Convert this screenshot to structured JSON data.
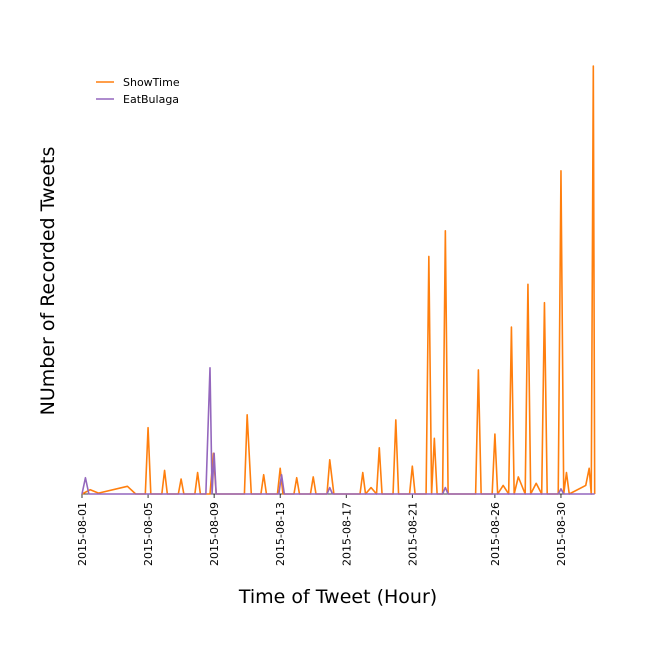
{
  "chart_data": {
    "type": "line",
    "title": "",
    "xlabel": "Time of Tweet (Hour)",
    "ylabel": "NUmber of Recorded Tweets",
    "xlim": [
      "2015-08-01",
      "2015-08-31"
    ],
    "ylim": [
      0,
      1000
    ],
    "x_ticks": [
      "2015-08-01",
      "2015-08-05",
      "2015-08-09",
      "2015-08-13",
      "2015-08-17",
      "2015-08-21",
      "2015-08-26",
      "2015-08-30"
    ],
    "y_ticks_visible": false,
    "grid": false,
    "legend": "top-left",
    "series": [
      {
        "name": "ShowTime",
        "color": "#ff7f0e",
        "points": [
          [
            "2015-08-01 00:00",
            0
          ],
          [
            "2015-08-01 12:00",
            10
          ],
          [
            "2015-08-02 00:00",
            2
          ],
          [
            "2015-08-03 18:00",
            18
          ],
          [
            "2015-08-04 06:00",
            0
          ],
          [
            "2015-08-04 20:00",
            0
          ],
          [
            "2015-08-05 00:00",
            155
          ],
          [
            "2015-08-05 04:00",
            0
          ],
          [
            "2015-08-05 20:00",
            0
          ],
          [
            "2015-08-06 00:00",
            55
          ],
          [
            "2015-08-06 04:00",
            0
          ],
          [
            "2015-08-06 20:00",
            0
          ],
          [
            "2015-08-07 00:00",
            35
          ],
          [
            "2015-08-07 04:00",
            0
          ],
          [
            "2015-08-07 20:00",
            0
          ],
          [
            "2015-08-08 00:00",
            50
          ],
          [
            "2015-08-08 04:00",
            0
          ],
          [
            "2015-08-08 18:00",
            0
          ],
          [
            "2015-08-08 23:00",
            95
          ],
          [
            "2015-08-09 03:00",
            0
          ],
          [
            "2015-08-10 20:00",
            0
          ],
          [
            "2015-08-11 00:00",
            185
          ],
          [
            "2015-08-11 06:00",
            0
          ],
          [
            "2015-08-11 20:00",
            0
          ],
          [
            "2015-08-12 00:00",
            45
          ],
          [
            "2015-08-12 04:00",
            0
          ],
          [
            "2015-08-12 20:00",
            0
          ],
          [
            "2015-08-13 00:00",
            60
          ],
          [
            "2015-08-13 04:00",
            0
          ],
          [
            "2015-08-13 20:00",
            0
          ],
          [
            "2015-08-14 00:00",
            38
          ],
          [
            "2015-08-14 04:00",
            0
          ],
          [
            "2015-08-14 20:00",
            0
          ],
          [
            "2015-08-15 00:00",
            40
          ],
          [
            "2015-08-15 04:00",
            0
          ],
          [
            "2015-08-15 20:00",
            0
          ],
          [
            "2015-08-16 00:00",
            80
          ],
          [
            "2015-08-16 06:00",
            0
          ],
          [
            "2015-08-17 20:00",
            0
          ],
          [
            "2015-08-18 00:00",
            50
          ],
          [
            "2015-08-18 04:00",
            0
          ],
          [
            "2015-08-18 12:00",
            15
          ],
          [
            "2015-08-18 20:00",
            0
          ],
          [
            "2015-08-19 00:00",
            108
          ],
          [
            "2015-08-19 04:00",
            0
          ],
          [
            "2015-08-19 20:00",
            0
          ],
          [
            "2015-08-20 00:00",
            173
          ],
          [
            "2015-08-20 04:00",
            0
          ],
          [
            "2015-08-20 20:00",
            0
          ],
          [
            "2015-08-21 00:00",
            65
          ],
          [
            "2015-08-21 04:00",
            0
          ],
          [
            "2015-08-21 20:00",
            0
          ],
          [
            "2015-08-22 00:00",
            555
          ],
          [
            "2015-08-22 04:00",
            0
          ],
          [
            "2015-08-22 08:00",
            130
          ],
          [
            "2015-08-22 12:00",
            0
          ],
          [
            "2015-08-22 20:00",
            0
          ],
          [
            "2015-08-23 00:00",
            615
          ],
          [
            "2015-08-23 04:00",
            0
          ],
          [
            "2015-08-24 20:00",
            0
          ],
          [
            "2015-08-25 00:00",
            290
          ],
          [
            "2015-08-25 04:00",
            0
          ],
          [
            "2015-08-25 20:00",
            0
          ],
          [
            "2015-08-26 00:00",
            140
          ],
          [
            "2015-08-26 04:00",
            0
          ],
          [
            "2015-08-26 12:00",
            20
          ],
          [
            "2015-08-26 20:00",
            0
          ],
          [
            "2015-08-27 00:00",
            390
          ],
          [
            "2015-08-27 04:00",
            0
          ],
          [
            "2015-08-27 10:00",
            40
          ],
          [
            "2015-08-27 20:00",
            0
          ],
          [
            "2015-08-28 00:00",
            490
          ],
          [
            "2015-08-28 04:00",
            0
          ],
          [
            "2015-08-28 12:00",
            25
          ],
          [
            "2015-08-28 20:00",
            0
          ],
          [
            "2015-08-29 00:00",
            447
          ],
          [
            "2015-08-29 04:00",
            0
          ],
          [
            "2015-08-29 20:00",
            0
          ],
          [
            "2015-08-30 00:00",
            755
          ],
          [
            "2015-08-30 04:00",
            0
          ],
          [
            "2015-08-30 08:00",
            50
          ],
          [
            "2015-08-30 12:00",
            0
          ],
          [
            "2015-08-31 12:00",
            20
          ],
          [
            "2015-08-31 17:00",
            60
          ],
          [
            "2015-08-31 20:00",
            0
          ],
          [
            "2015-08-31 23:00",
            1000
          ],
          [
            "2015-09-01 01:00",
            0
          ]
        ]
      },
      {
        "name": "EatBulaga",
        "color": "#9467bd",
        "points": [
          [
            "2015-08-01 00:00",
            0
          ],
          [
            "2015-08-01 05:00",
            38
          ],
          [
            "2015-08-01 10:00",
            0
          ],
          [
            "2015-08-08 12:00",
            0
          ],
          [
            "2015-08-08 18:00",
            295
          ],
          [
            "2015-08-08 21:00",
            0
          ],
          [
            "2015-08-09 00:00",
            95
          ],
          [
            "2015-08-09 03:00",
            0
          ],
          [
            "2015-08-12 22:00",
            0
          ],
          [
            "2015-08-13 02:00",
            45
          ],
          [
            "2015-08-13 06:00",
            0
          ],
          [
            "2015-08-15 20:00",
            0
          ],
          [
            "2015-08-16 00:00",
            15
          ],
          [
            "2015-08-16 04:00",
            0
          ],
          [
            "2015-08-22 20:00",
            0
          ],
          [
            "2015-08-23 00:00",
            15
          ],
          [
            "2015-08-23 04:00",
            0
          ],
          [
            "2015-08-29 20:00",
            0
          ],
          [
            "2015-08-30 00:00",
            12
          ],
          [
            "2015-08-30 04:00",
            0
          ],
          [
            "2015-09-01 01:00",
            0
          ]
        ]
      }
    ]
  }
}
